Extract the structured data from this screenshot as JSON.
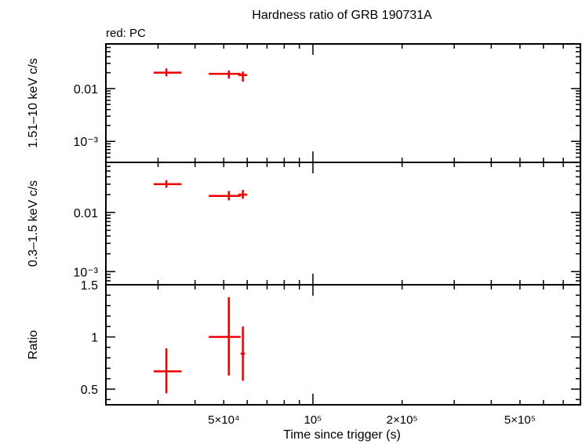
{
  "chart_data": {
    "type": "scatter",
    "title": "Hardness ratio of GRB 190731A",
    "legend_text": "red: PC",
    "xlabel": "Time since trigger (s)",
    "xscale": "log",
    "xlim": [
      20000,
      800000
    ],
    "x_ticks": [
      {
        "value": 50000,
        "label": "5×10⁴"
      },
      {
        "value": 100000,
        "label": "10⁵"
      },
      {
        "value": 200000,
        "label": "2×10⁵"
      },
      {
        "value": 500000,
        "label": "5×10⁵"
      }
    ],
    "color": "#ee0000",
    "panels": [
      {
        "id": "hard",
        "ylabel": "1.51–10 keV c/s",
        "yscale": "log",
        "ylim": [
          0.0004,
          0.07
        ],
        "y_ticks": [
          {
            "value": 0.001,
            "label": "10⁻³"
          },
          {
            "value": 0.01,
            "label": "0.01"
          }
        ],
        "points": [
          {
            "x": 32000,
            "xlo": 29000,
            "xhi": 36000,
            "y": 0.02,
            "ylo": 0.017,
            "yhi": 0.024
          },
          {
            "x": 52000,
            "xlo": 44500,
            "xhi": 57000,
            "y": 0.019,
            "ylo": 0.0155,
            "yhi": 0.022
          },
          {
            "x": 58000,
            "xlo": 56000,
            "xhi": 60000,
            "y": 0.018,
            "ylo": 0.0135,
            "yhi": 0.021
          }
        ]
      },
      {
        "id": "soft",
        "ylabel": "0.3–1.5 keV c/s",
        "yscale": "log",
        "ylim": [
          0.0006,
          0.07
        ],
        "y_ticks": [
          {
            "value": 0.001,
            "label": "10⁻³"
          },
          {
            "value": 0.01,
            "label": "0.01"
          }
        ],
        "points": [
          {
            "x": 32000,
            "xlo": 29000,
            "xhi": 36000,
            "y": 0.03,
            "ylo": 0.026,
            "yhi": 0.035
          },
          {
            "x": 52000,
            "xlo": 44500,
            "xhi": 57000,
            "y": 0.019,
            "ylo": 0.016,
            "yhi": 0.023
          },
          {
            "x": 58000,
            "xlo": 56000,
            "xhi": 60000,
            "y": 0.02,
            "ylo": 0.017,
            "yhi": 0.024
          }
        ]
      },
      {
        "id": "ratio",
        "ylabel": "Ratio",
        "yscale": "linear",
        "ylim": [
          0.35,
          1.5
        ],
        "y_ticks": [
          {
            "value": 0.5,
            "label": "0.5"
          },
          {
            "value": 1,
            "label": "1"
          },
          {
            "value": 1.5,
            "label": "1.5"
          }
        ],
        "points": [
          {
            "x": 32000,
            "xlo": 29000,
            "xhi": 36000,
            "y": 0.67,
            "ylo": 0.46,
            "yhi": 0.89
          },
          {
            "x": 52000,
            "xlo": 44500,
            "xhi": 57000,
            "y": 1.0,
            "ylo": 0.63,
            "yhi": 1.38
          },
          {
            "x": 58000,
            "xlo": 57000,
            "xhi": 59000,
            "y": 0.84,
            "ylo": 0.58,
            "yhi": 1.1
          }
        ]
      }
    ]
  }
}
